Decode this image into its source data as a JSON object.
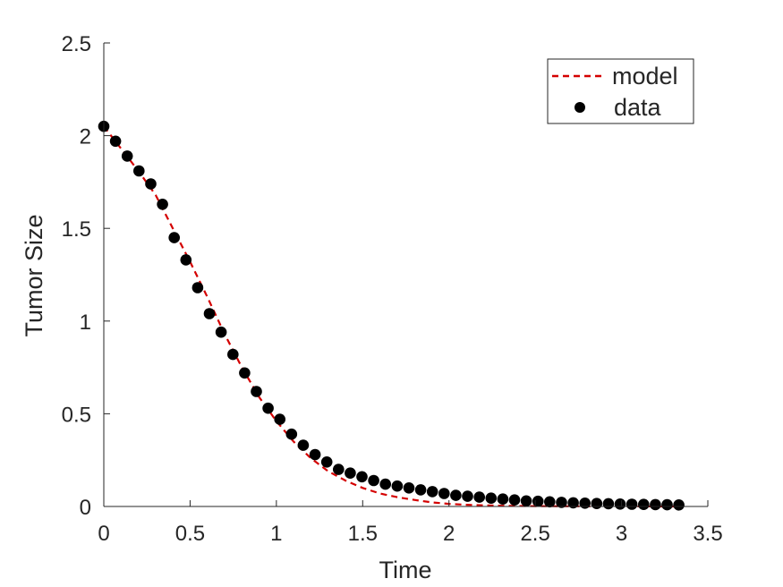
{
  "chart_data": {
    "type": "scatter",
    "title": "",
    "xlabel": "Time",
    "ylabel": "Tumor Size",
    "xlim": [
      0,
      3.5
    ],
    "ylim": [
      0,
      2.5
    ],
    "xticks": [
      0,
      0.5,
      1,
      1.5,
      2,
      2.5,
      3,
      3.5
    ],
    "yticks": [
      0,
      0.5,
      1,
      1.5,
      2,
      2.5
    ],
    "xtick_labels": [
      "0",
      "0.5",
      "1",
      "1.5",
      "2",
      "2.5",
      "3",
      "3.5"
    ],
    "ytick_labels": [
      "0",
      "0.5",
      "1",
      "1.5",
      "2",
      "2.5"
    ],
    "grid": false,
    "legend_position": "top-right",
    "series": [
      {
        "name": "model",
        "style": "dashed-line",
        "color": "#d40000",
        "x": [
          0,
          0.1,
          0.2,
          0.3,
          0.4,
          0.5,
          0.6,
          0.7,
          0.8,
          0.9,
          1.0,
          1.1,
          1.2,
          1.3,
          1.4,
          1.5,
          1.6,
          1.7,
          1.8,
          1.9,
          2.0,
          2.1,
          2.2,
          2.3,
          2.4,
          2.5,
          2.7,
          3.0,
          3.33
        ],
        "y": [
          2.05,
          1.93,
          1.81,
          1.68,
          1.5,
          1.32,
          1.13,
          0.93,
          0.75,
          0.59,
          0.46,
          0.35,
          0.26,
          0.19,
          0.14,
          0.1,
          0.07,
          0.05,
          0.035,
          0.022,
          0.014,
          0.009,
          0.006,
          0.004,
          0.003,
          0.002,
          0.001,
          0.0005,
          0.0002
        ]
      },
      {
        "name": "data",
        "style": "filled-markers",
        "color": "#000000",
        "x": [
          0.0,
          0.068,
          0.136,
          0.204,
          0.272,
          0.34,
          0.408,
          0.476,
          0.544,
          0.612,
          0.68,
          0.748,
          0.816,
          0.884,
          0.952,
          1.02,
          1.088,
          1.156,
          1.224,
          1.292,
          1.36,
          1.428,
          1.496,
          1.564,
          1.632,
          1.7,
          1.768,
          1.836,
          1.904,
          1.972,
          2.04,
          2.108,
          2.176,
          2.244,
          2.312,
          2.38,
          2.448,
          2.516,
          2.584,
          2.652,
          2.72,
          2.788,
          2.856,
          2.924,
          2.992,
          3.06,
          3.128,
          3.196,
          3.264,
          3.332
        ],
        "y": [
          2.05,
          1.97,
          1.89,
          1.81,
          1.74,
          1.63,
          1.45,
          1.33,
          1.18,
          1.04,
          0.94,
          0.82,
          0.72,
          0.62,
          0.53,
          0.47,
          0.39,
          0.33,
          0.28,
          0.24,
          0.2,
          0.18,
          0.16,
          0.14,
          0.12,
          0.11,
          0.1,
          0.09,
          0.08,
          0.07,
          0.06,
          0.055,
          0.05,
          0.045,
          0.04,
          0.035,
          0.03,
          0.028,
          0.025,
          0.022,
          0.02,
          0.018,
          0.016,
          0.015,
          0.013,
          0.012,
          0.011,
          0.01,
          0.009,
          0.008
        ]
      }
    ]
  }
}
